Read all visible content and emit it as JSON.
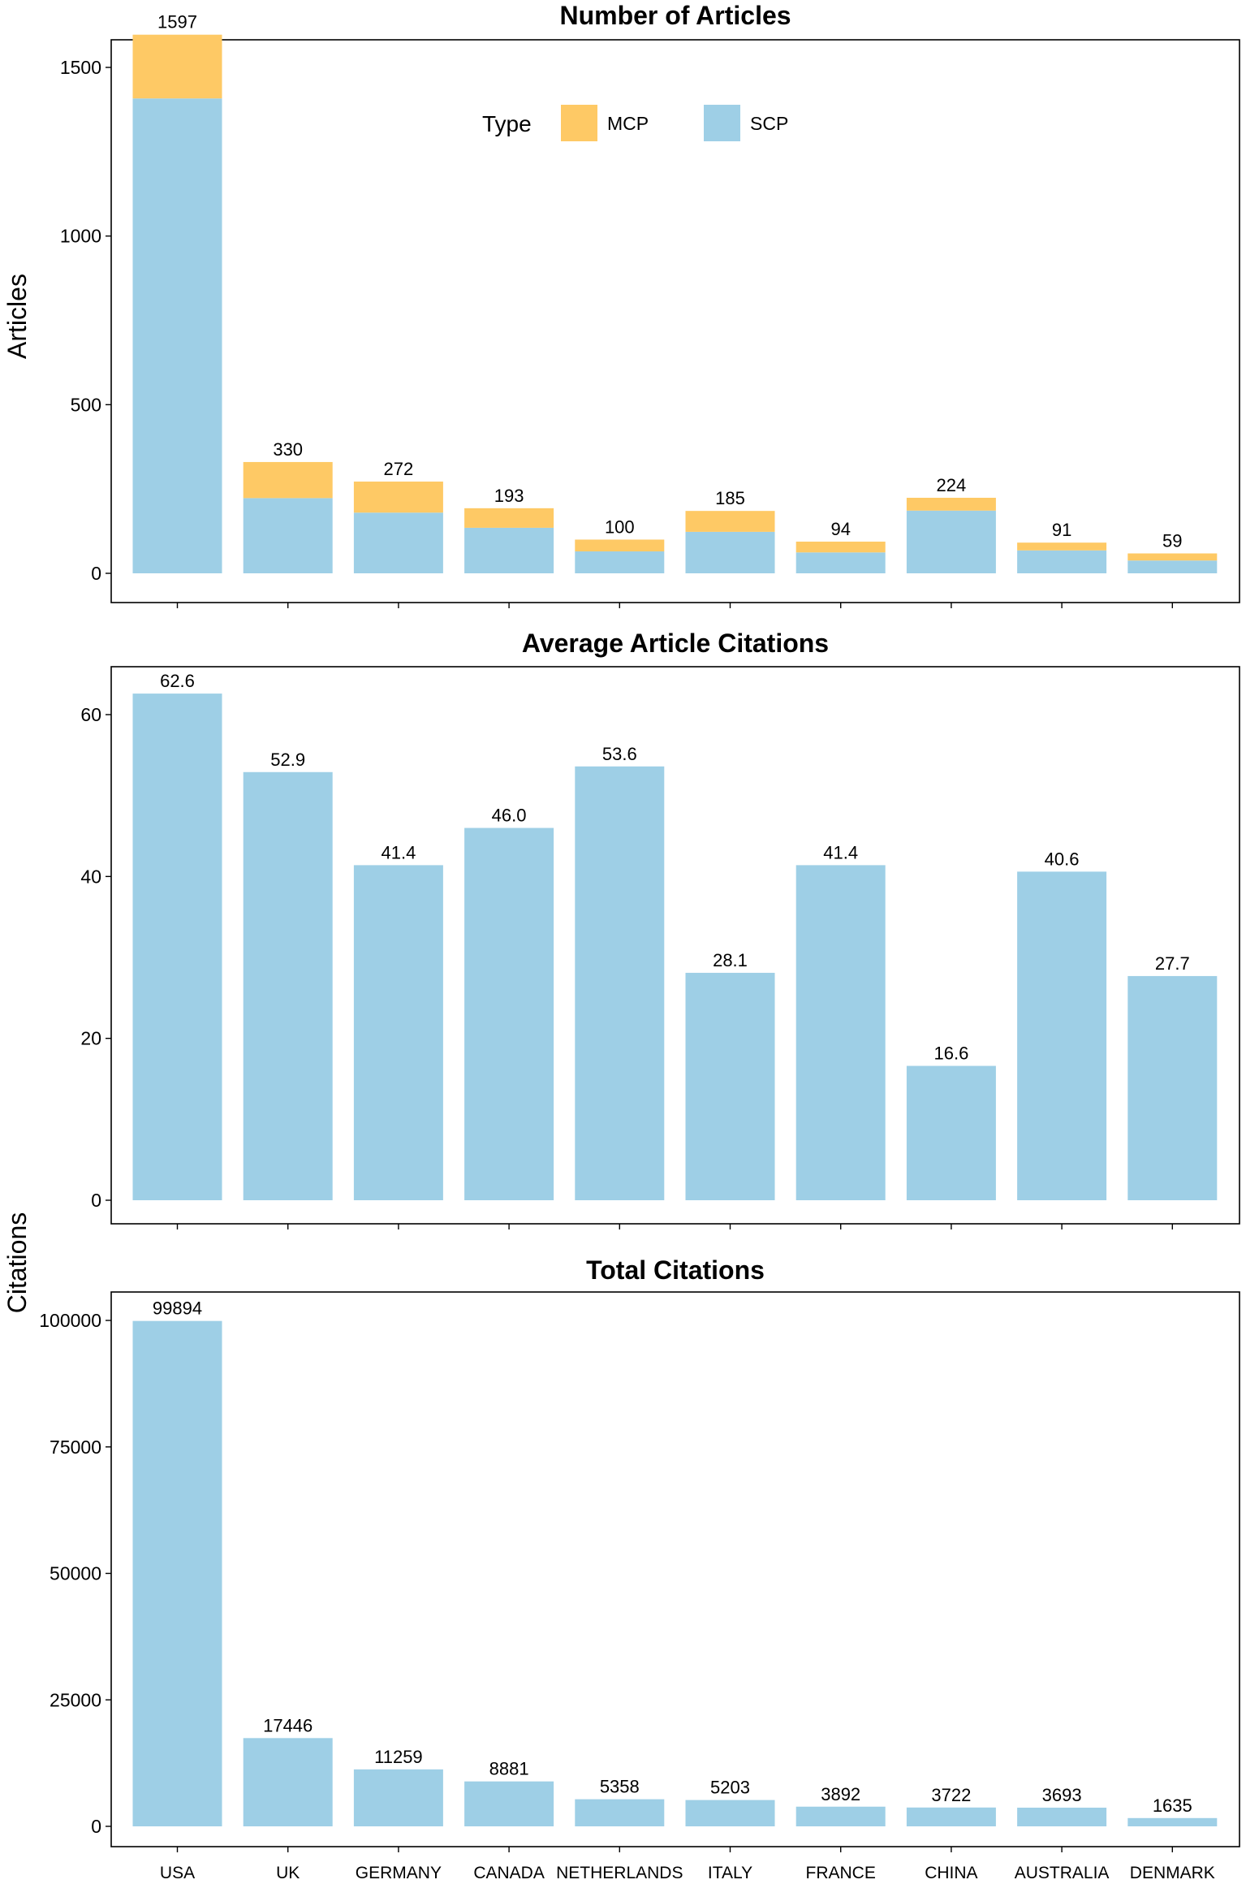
{
  "chart_data": [
    {
      "type": "bar",
      "stacked": true,
      "title": "Number of Articles",
      "xlabel": "",
      "ylabel": "Articles",
      "ylim": [
        0,
        1650
      ],
      "yticks": [
        0,
        500,
        1000,
        1500
      ],
      "categories": [
        "USA",
        "UK",
        "GERMANY",
        "CANADA",
        "NETHERLANDS",
        "ITALY",
        "FRANCE",
        "CHINA",
        "AUSTRALIA",
        "DENMARK"
      ],
      "totals": [
        1597,
        330,
        272,
        193,
        100,
        185,
        94,
        224,
        91,
        59
      ],
      "series": [
        {
          "name": "SCP",
          "color": "#9ecfe6",
          "values": [
            1408,
            223,
            180,
            135,
            65,
            123,
            62,
            186,
            68,
            38
          ]
        },
        {
          "name": "MCP",
          "color": "#fec965",
          "values": [
            189,
            107,
            92,
            58,
            35,
            62,
            32,
            38,
            23,
            21
          ]
        }
      ],
      "legend": {
        "title": "Type",
        "position": "top-center",
        "entries": [
          "MCP",
          "SCP"
        ]
      }
    },
    {
      "type": "bar",
      "title": "Average Article Citations",
      "xlabel": "",
      "ylabel": "",
      "ylim": [
        0,
        65
      ],
      "yticks": [
        0,
        20,
        40,
        60
      ],
      "categories": [
        "USA",
        "UK",
        "GERMANY",
        "CANADA",
        "NETHERLANDS",
        "ITALY",
        "FRANCE",
        "CHINA",
        "AUSTRALIA",
        "DENMARK"
      ],
      "values": [
        62.6,
        52.9,
        41.4,
        46.0,
        53.6,
        28.1,
        41.4,
        16.6,
        40.6,
        27.7
      ],
      "labels": [
        "62.6",
        "52.9",
        "41.4",
        "46.0",
        "53.6",
        "28.1",
        "41.4",
        "16.6",
        "40.6",
        "27.7"
      ],
      "color": "#9ecfe6"
    },
    {
      "type": "bar",
      "title": "Total Citations",
      "xlabel": "",
      "ylabel": "",
      "ylim": [
        0,
        103000
      ],
      "yticks": [
        0,
        25000,
        50000,
        75000,
        100000
      ],
      "categories": [
        "USA",
        "UK",
        "GERMANY",
        "CANADA",
        "NETHERLANDS",
        "ITALY",
        "FRANCE",
        "CHINA",
        "AUSTRALIA",
        "DENMARK"
      ],
      "values": [
        99894,
        17446,
        11259,
        8881,
        5358,
        5203,
        3892,
        3722,
        3693,
        1635
      ],
      "color": "#9ecfe6"
    }
  ],
  "shared_ylabel": "Citations"
}
